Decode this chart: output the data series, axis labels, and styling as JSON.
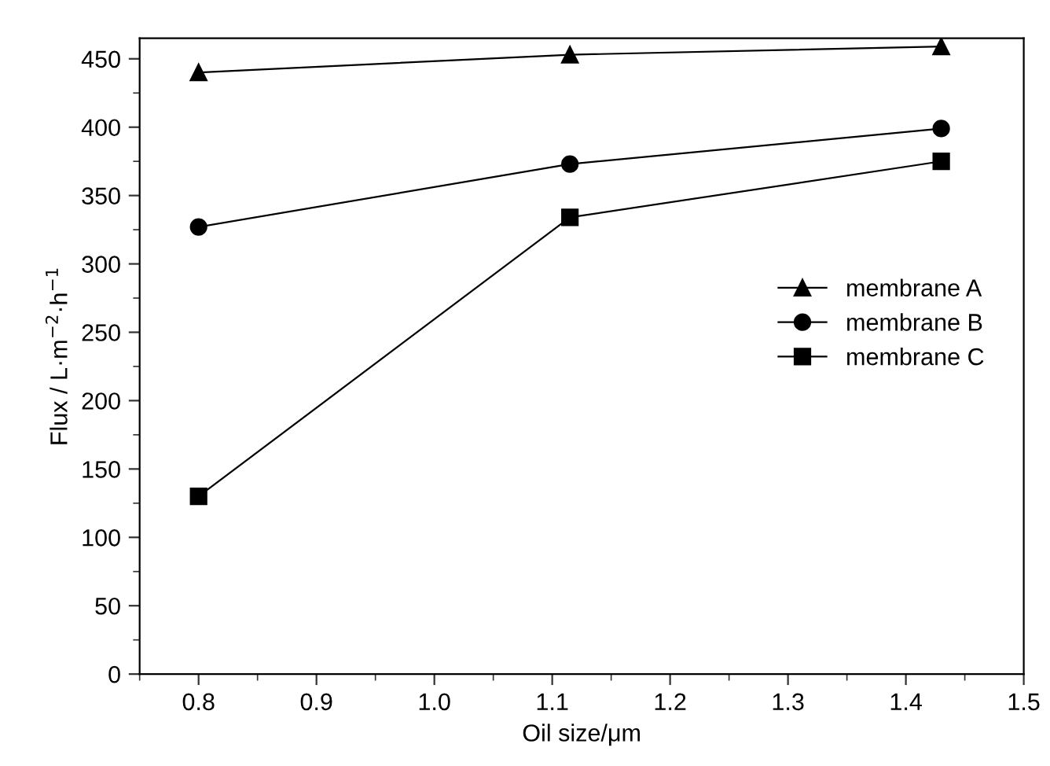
{
  "chart_data": {
    "type": "line",
    "xlabel": "Oil size/μm",
    "ylabel": "Flux / L·m$^{−2}$·h$^{−1}$",
    "x": [
      0.8,
      1.115,
      1.43
    ],
    "series": [
      {
        "name": "membrane A",
        "color": "#000000",
        "marker": "triangle",
        "values": [
          440,
          453,
          459
        ]
      },
      {
        "name": "membrane B",
        "color": "#000000",
        "marker": "circle",
        "values": [
          327,
          373,
          399
        ]
      },
      {
        "name": "membrane C",
        "color": "#000000",
        "marker": "square",
        "values": [
          130,
          334,
          375
        ]
      }
    ],
    "xlim": [
      0.75,
      1.5
    ],
    "xticks": [
      {
        "value": 0.8,
        "label": "0.8"
      },
      {
        "value": 0.9,
        "label": "0.9"
      },
      {
        "value": 1.0,
        "label": "1.0"
      },
      {
        "value": 1.1,
        "label": "1.1"
      },
      {
        "value": 1.2,
        "label": "1.2"
      },
      {
        "value": 1.3,
        "label": "1.3"
      },
      {
        "value": 1.4,
        "label": "1.4"
      },
      {
        "value": 1.5,
        "label": "1.5"
      }
    ],
    "ylim": [
      0,
      465
    ],
    "yticks": [
      0,
      50,
      100,
      150,
      200,
      250,
      300,
      350,
      400,
      450
    ],
    "line_style": "solid",
    "grid": false,
    "legend": "right"
  }
}
